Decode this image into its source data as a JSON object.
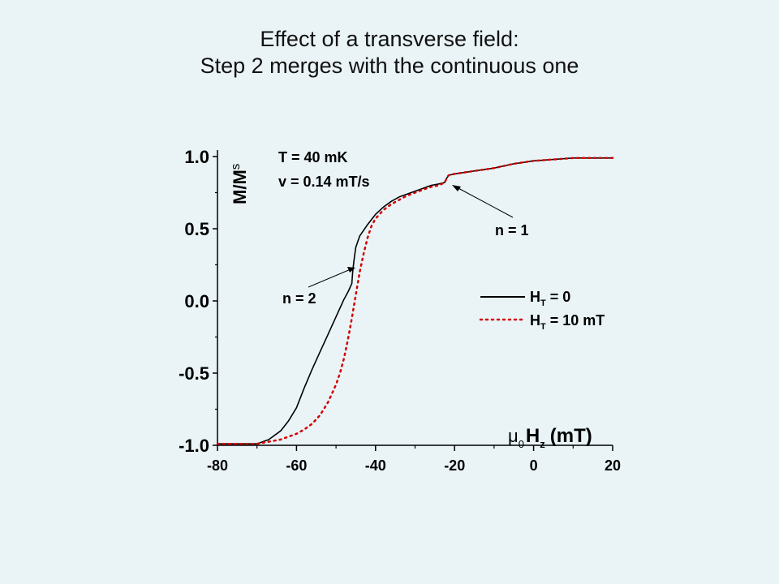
{
  "slide": {
    "title_line1": "Effect of a transverse field:",
    "title_line2": "Step 2 merges with the continuous one"
  },
  "chart_data": {
    "type": "line",
    "xlim": [
      -80,
      20
    ],
    "ylim": [
      -1.0,
      1.0
    ],
    "x_ticks": [
      "-80",
      "-60",
      "-40",
      "-20",
      "0",
      "20"
    ],
    "y_ticks": [
      "-1.0",
      "-0.5",
      "0.0",
      "0.5",
      "1.0"
    ],
    "ylabel_main": "M/M",
    "ylabel_sub": "s",
    "xlabel": {
      "mu": "μ",
      "mu_sub": "0",
      "h": "H",
      "h_sub": "z",
      "unit": "(mT)"
    },
    "conditions": [
      "T = 40 mK",
      "v = 0.14 mT/s"
    ],
    "annotations": [
      {
        "text": "n = 1",
        "point": [
          -22,
          0.8
        ]
      },
      {
        "text": "n = 2",
        "point": [
          -45.5,
          0.23
        ]
      }
    ],
    "legend": {
      "position": "right",
      "entries": [
        {
          "label": "H",
          "sub": "T",
          "suffix": " = 0",
          "series": 0
        },
        {
          "label": "H",
          "sub": "T",
          "suffix": " = 10 mT",
          "series": 1
        }
      ]
    },
    "grid": false,
    "series": [
      {
        "color": "#000000",
        "style": "solid",
        "x": [
          -80,
          -70,
          -67,
          -64,
          -62,
          -60,
          -58,
          -56,
          -54,
          -52,
          -50,
          -48,
          -47,
          -46.5,
          -46,
          -45.8,
          -45.5,
          -45,
          -44,
          -42,
          -40,
          -38,
          -36,
          -34,
          -32,
          -30,
          -28,
          -26,
          -24,
          -22.5,
          -22,
          -21.5,
          -20,
          -15,
          -10,
          -5,
          0,
          5,
          10,
          15,
          20
        ],
        "y": [
          -0.99,
          -0.99,
          -0.96,
          -0.9,
          -0.83,
          -0.74,
          -0.6,
          -0.47,
          -0.35,
          -0.23,
          -0.11,
          0.01,
          0.06,
          0.09,
          0.12,
          0.2,
          0.27,
          0.37,
          0.45,
          0.53,
          0.6,
          0.65,
          0.69,
          0.72,
          0.74,
          0.76,
          0.78,
          0.8,
          0.81,
          0.82,
          0.85,
          0.87,
          0.88,
          0.9,
          0.92,
          0.95,
          0.97,
          0.98,
          0.99,
          0.99,
          0.99
        ]
      },
      {
        "color": "#d40000",
        "style": "dotted",
        "x": [
          -80,
          -70,
          -68,
          -66,
          -64,
          -62,
          -60,
          -58,
          -56,
          -54,
          -52,
          -50,
          -49,
          -48,
          -47,
          -46,
          -45,
          -44,
          -43,
          -42,
          -41,
          -40,
          -38,
          -36,
          -34,
          -32,
          -30,
          -28,
          -26,
          -24,
          -22.5,
          -22,
          -21.5,
          -20,
          -15,
          -10,
          -5,
          0,
          5,
          10,
          15,
          20
        ],
        "y": [
          -0.99,
          -0.99,
          -0.98,
          -0.97,
          -0.96,
          -0.94,
          -0.92,
          -0.89,
          -0.85,
          -0.79,
          -0.7,
          -0.58,
          -0.5,
          -0.4,
          -0.27,
          -0.12,
          0.04,
          0.2,
          0.33,
          0.44,
          0.52,
          0.57,
          0.63,
          0.67,
          0.7,
          0.73,
          0.75,
          0.77,
          0.79,
          0.8,
          0.82,
          0.85,
          0.87,
          0.88,
          0.9,
          0.92,
          0.95,
          0.97,
          0.98,
          0.99,
          0.99,
          0.99
        ]
      }
    ]
  }
}
